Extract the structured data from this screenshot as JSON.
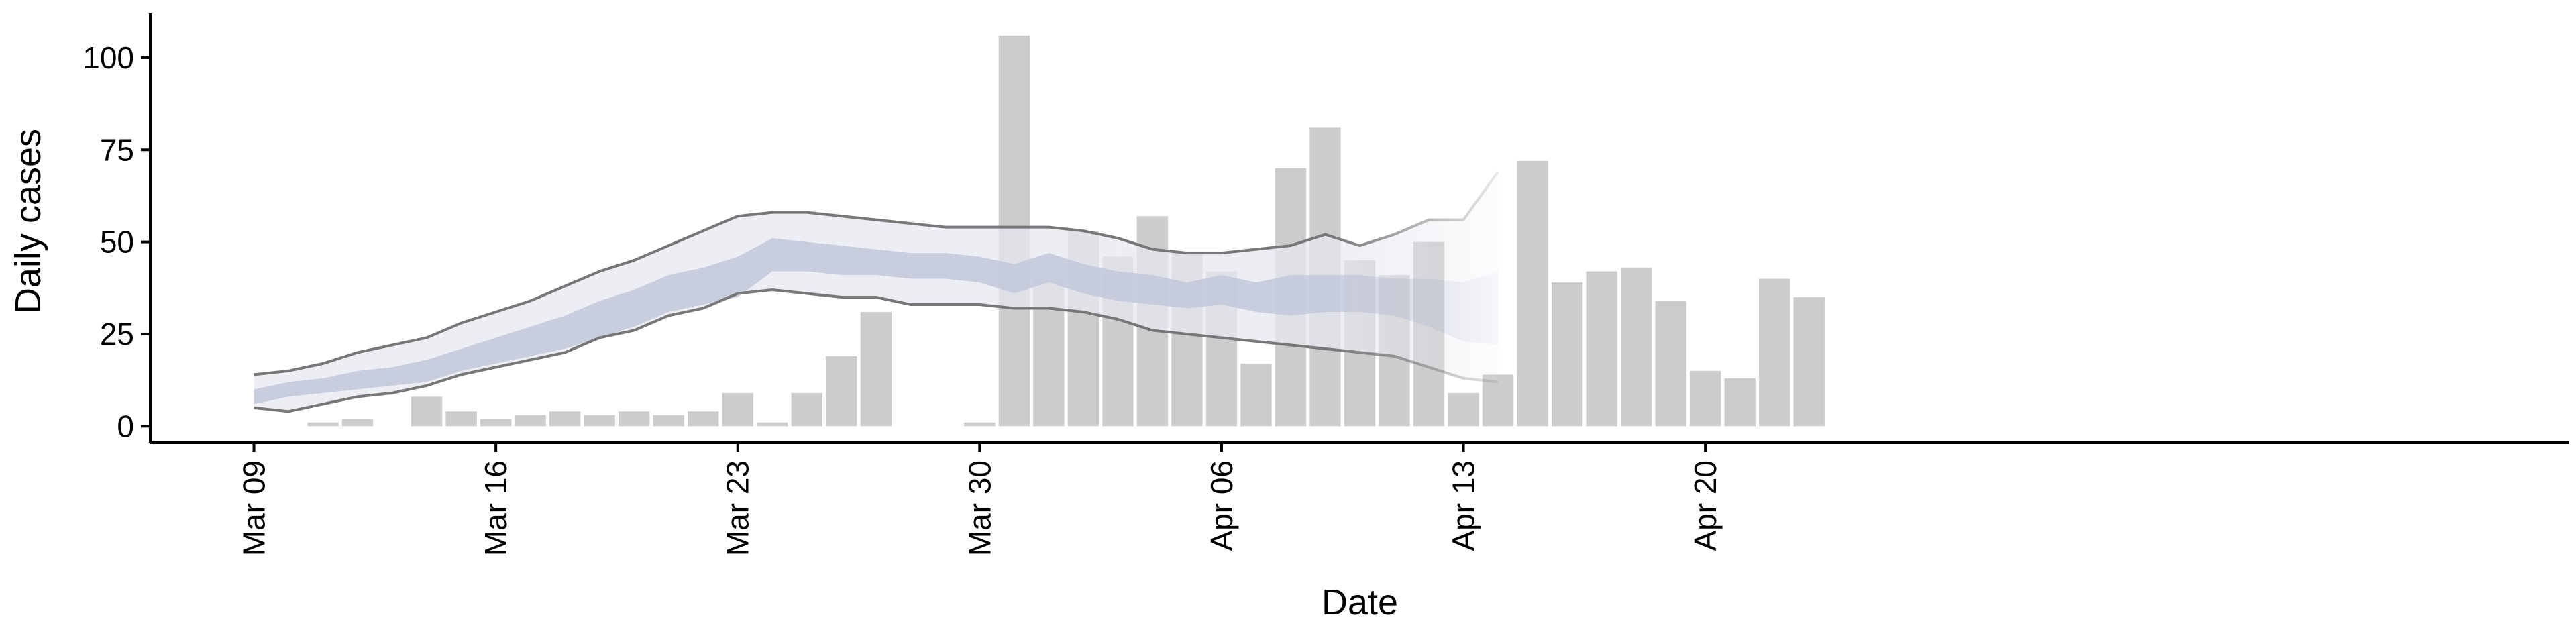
{
  "chart_data": {
    "type": "bar",
    "xlabel": "Date",
    "ylabel": "Daily cases",
    "ylim": [
      -4.5,
      112
    ],
    "y_ticks": [
      0,
      25,
      50,
      75,
      100
    ],
    "y_tick_labels": [
      "0",
      "25",
      "50",
      "75",
      "100"
    ],
    "x_range_day_offsets": [
      -3,
      67
    ],
    "x_ticks": [
      {
        "label": "Mar 09",
        "day": 0
      },
      {
        "label": "Mar 16",
        "day": 7
      },
      {
        "label": "Mar 23",
        "day": 14
      },
      {
        "label": "Mar 30",
        "day": 21
      },
      {
        "label": "Apr 06",
        "day": 28
      },
      {
        "label": "Apr 13",
        "day": 35
      },
      {
        "label": "Apr 20",
        "day": 42
      }
    ],
    "grid": false,
    "legend": "none",
    "colors": {
      "bars": "#cccccc",
      "outer_band": "#e7e8f0",
      "inner_band": "#c3c9dc",
      "bound_line": "#777777"
    },
    "bars": {
      "name": "Daily cases",
      "x": [
        "Mar 09",
        "Mar 10",
        "Mar 11",
        "Mar 12",
        "Mar 13",
        "Mar 14",
        "Mar 15",
        "Mar 16",
        "Mar 17",
        "Mar 18",
        "Mar 19",
        "Mar 20",
        "Mar 21",
        "Mar 22",
        "Mar 23",
        "Mar 24",
        "Mar 25",
        "Mar 26",
        "Mar 27",
        "Mar 28",
        "Mar 29",
        "Mar 30",
        "Mar 31",
        "Apr 01",
        "Apr 02",
        "Apr 03",
        "Apr 04",
        "Apr 05",
        "Apr 06",
        "Apr 07",
        "Apr 08",
        "Apr 09",
        "Apr 10",
        "Apr 11",
        "Apr 12",
        "Apr 13",
        "Apr 14",
        "Apr 15",
        "Apr 16",
        "Apr 17",
        "Apr 18",
        "Apr 19",
        "Apr 20",
        "Apr 21",
        "Apr 22",
        "Apr 23",
        "Apr 24",
        "Apr 25"
      ],
      "values": [
        0,
        0,
        1,
        2,
        0,
        8,
        4,
        2,
        3,
        4,
        3,
        4,
        3,
        4,
        9,
        1,
        9,
        19,
        31,
        0,
        0,
        1,
        106,
        40,
        53,
        46,
        57,
        47,
        42,
        17,
        70,
        81,
        45,
        41,
        50,
        9,
        14,
        72,
        39,
        42,
        43,
        34,
        15,
        13,
        40,
        35,
        0,
        0
      ]
    },
    "band_x": [
      "Mar 09",
      "Mar 10",
      "Mar 11",
      "Mar 12",
      "Mar 13",
      "Mar 14",
      "Mar 15",
      "Mar 16",
      "Mar 17",
      "Mar 18",
      "Mar 19",
      "Mar 20",
      "Mar 21",
      "Mar 22",
      "Mar 23",
      "Mar 24",
      "Mar 25",
      "Mar 26",
      "Mar 27",
      "Mar 28",
      "Mar 29",
      "Mar 30",
      "Mar 31",
      "Apr 01",
      "Apr 02",
      "Apr 03",
      "Apr 04",
      "Apr 05",
      "Apr 06",
      "Apr 07",
      "Apr 08",
      "Apr 09",
      "Apr 10",
      "Apr 11",
      "Apr 12",
      "Apr 13",
      "Apr 14"
    ],
    "series": [
      {
        "band": "outer",
        "upper": [
          14,
          15,
          17,
          20,
          22,
          24,
          28,
          31,
          34,
          38,
          42,
          45,
          49,
          53,
          57,
          58,
          58,
          57,
          56,
          55,
          54,
          54,
          54,
          54,
          53,
          51,
          48,
          47,
          47,
          48,
          49,
          52,
          49,
          52,
          56,
          56,
          69
        ],
        "lower": [
          5,
          4,
          6,
          8,
          9,
          11,
          14,
          16,
          18,
          20,
          24,
          26,
          30,
          32,
          36,
          37,
          36,
          35,
          35,
          33,
          33,
          33,
          32,
          32,
          31,
          29,
          26,
          25,
          24,
          23,
          22,
          21,
          20,
          19,
          16,
          13,
          12
        ]
      },
      {
        "band": "inner",
        "upper": [
          10,
          12,
          13,
          15,
          16,
          18,
          21,
          24,
          27,
          30,
          34,
          37,
          41,
          43,
          46,
          51,
          50,
          49,
          48,
          47,
          47,
          46,
          44,
          47,
          44,
          42,
          41,
          39,
          41,
          39,
          41,
          41,
          41,
          40,
          40,
          39,
          42
        ],
        "lower": [
          6,
          8,
          9,
          10,
          11,
          12,
          15,
          17,
          19,
          21,
          24,
          27,
          31,
          33,
          35,
          42,
          42,
          41,
          41,
          40,
          40,
          39,
          36,
          39,
          36,
          34,
          33,
          32,
          33,
          31,
          30,
          31,
          31,
          30,
          27,
          23,
          22
        ]
      }
    ]
  }
}
